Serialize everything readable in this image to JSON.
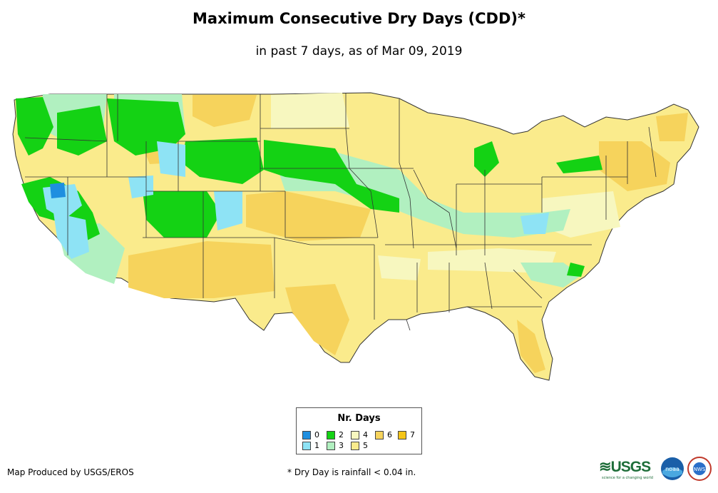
{
  "title": "Maximum Consecutive Dry Days (CDD)*",
  "subtitle": "in past 7 days, as of Mar 09, 2019",
  "legend": {
    "title": "Nr. Days",
    "items": [
      {
        "label": "0",
        "color": "#1f8fe0"
      },
      {
        "label": "1",
        "color": "#8ee3f5"
      },
      {
        "label": "2",
        "color": "#14d214"
      },
      {
        "label": "3",
        "color": "#b1f0c0"
      },
      {
        "label": "4",
        "color": "#f7f7bf"
      },
      {
        "label": "5",
        "color": "#faeb8c"
      },
      {
        "label": "6",
        "color": "#f6d35c"
      },
      {
        "label": "7",
        "color": "#f5c518"
      }
    ]
  },
  "footer": {
    "credit": "Map Produced by USGS/EROS",
    "note": "* Dry Day is rainfall < 0.04 in."
  },
  "logos": {
    "usgs_text": "≋USGS",
    "usgs_tagline": "science for a changing world",
    "noaa_text": "noaa",
    "nws_text": "NWS"
  }
}
